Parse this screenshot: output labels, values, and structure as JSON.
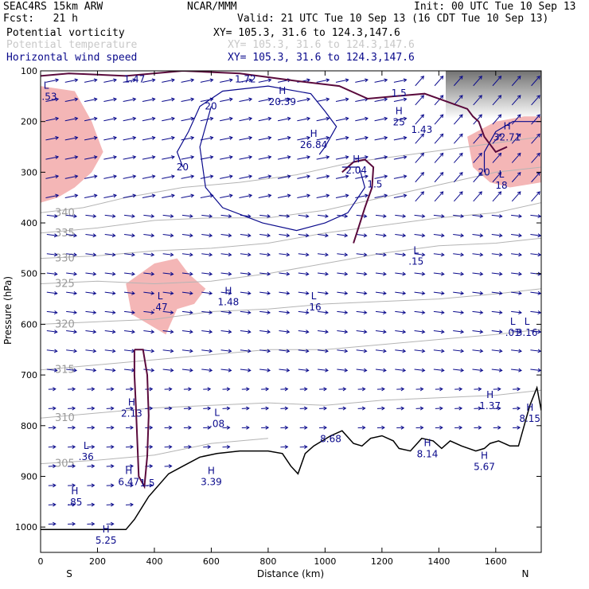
{
  "header": {
    "model": "SEAC4RS 15km ARW",
    "org": "NCAR/MMM",
    "init": "Init: 00 UTC Tue 10 Sep 13",
    "fcst": "Fcst:   21 h",
    "valid": "Valid: 21 UTC Tue 10 Sep 13 (16 CDT Tue 10 Sep 13)",
    "fields": [
      {
        "name": "Potential vorticity",
        "xy": "XY= 105.3, 31.6 to 124.3,147.6",
        "color": "#000000"
      },
      {
        "name": "Potential temperature",
        "xy": "XY= 105.3, 31.6 to 124.3,147.6",
        "color": "#c8c8c8"
      },
      {
        "name": "Horizontal wind speed",
        "xy": "XY= 105.3, 31.6 to 124.3,147.6",
        "color": "#0a0a8c"
      }
    ]
  },
  "colors": {
    "pv_shade": "#f4b6b6",
    "pv_contour": "#5a0a3c",
    "theta": "#b4b4b4",
    "wind": "#0a0a8c",
    "terrain": "#000000"
  },
  "chart_data": {
    "type": "contour cross-section",
    "xlabel": "Distance (km)",
    "ylabel": "Pressure (hPa)",
    "xlim": [
      0,
      1760
    ],
    "ylim": [
      1050,
      100
    ],
    "x_ticks": [
      0,
      200,
      400,
      600,
      800,
      1000,
      1200,
      1400,
      1600
    ],
    "y_ticks": [
      100,
      200,
      300,
      400,
      500,
      600,
      700,
      800,
      900,
      1000
    ],
    "x_end_labels": {
      "left": "S",
      "right": "N"
    },
    "terrain": [
      [
        0,
        1005
      ],
      [
        300,
        1005
      ],
      [
        330,
        985
      ],
      [
        380,
        940
      ],
      [
        450,
        895
      ],
      [
        500,
        880
      ],
      [
        560,
        862
      ],
      [
        620,
        855
      ],
      [
        700,
        850
      ],
      [
        800,
        850
      ],
      [
        850,
        855
      ],
      [
        880,
        880
      ],
      [
        905,
        895
      ],
      [
        930,
        855
      ],
      [
        960,
        840
      ],
      [
        990,
        830
      ],
      [
        1020,
        820
      ],
      [
        1060,
        810
      ],
      [
        1100,
        835
      ],
      [
        1130,
        840
      ],
      [
        1160,
        825
      ],
      [
        1200,
        820
      ],
      [
        1240,
        830
      ],
      [
        1260,
        845
      ],
      [
        1300,
        850
      ],
      [
        1340,
        825
      ],
      [
        1380,
        830
      ],
      [
        1410,
        845
      ],
      [
        1440,
        830
      ],
      [
        1480,
        840
      ],
      [
        1530,
        850
      ],
      [
        1560,
        845
      ],
      [
        1580,
        835
      ],
      [
        1610,
        830
      ],
      [
        1650,
        840
      ],
      [
        1680,
        840
      ],
      [
        1720,
        760
      ],
      [
        1745,
        725
      ],
      [
        1760,
        770
      ]
    ],
    "theta_contours": [
      {
        "label": "340",
        "points": [
          [
            0,
            380
          ],
          [
            150,
            370
          ],
          [
            300,
            350
          ],
          [
            500,
            330
          ],
          [
            700,
            320
          ],
          [
            900,
            305
          ],
          [
            1100,
            280
          ],
          [
            1300,
            265
          ],
          [
            1500,
            250
          ],
          [
            1760,
            230
          ]
        ]
      },
      {
        "label": "335",
        "points": [
          [
            0,
            420
          ],
          [
            200,
            410
          ],
          [
            400,
            395
          ],
          [
            600,
            390
          ],
          [
            800,
            390
          ],
          [
            1000,
            375
          ],
          [
            1200,
            350
          ],
          [
            1400,
            325
          ],
          [
            1600,
            300
          ],
          [
            1760,
            290
          ]
        ]
      },
      {
        "label": "330",
        "points": [
          [
            0,
            470
          ],
          [
            200,
            465
          ],
          [
            400,
            455
          ],
          [
            600,
            450
          ],
          [
            800,
            440
          ],
          [
            1000,
            420
          ],
          [
            1200,
            405
          ],
          [
            1400,
            390
          ],
          [
            1600,
            380
          ],
          [
            1760,
            360
          ]
        ]
      },
      {
        "label": "325",
        "points": [
          [
            0,
            520
          ],
          [
            200,
            515
          ],
          [
            400,
            520
          ],
          [
            600,
            515
          ],
          [
            800,
            500
          ],
          [
            1000,
            480
          ],
          [
            1200,
            460
          ],
          [
            1400,
            445
          ],
          [
            1600,
            440
          ],
          [
            1760,
            430
          ]
        ]
      },
      {
        "label": "320",
        "points": [
          [
            0,
            600
          ],
          [
            200,
            595
          ],
          [
            400,
            590
          ],
          [
            600,
            575
          ],
          [
            800,
            570
          ],
          [
            1000,
            560
          ],
          [
            1200,
            555
          ],
          [
            1400,
            550
          ],
          [
            1600,
            540
          ],
          [
            1760,
            530
          ]
        ]
      },
      {
        "label": "315",
        "points": [
          [
            0,
            690
          ],
          [
            200,
            680
          ],
          [
            400,
            670
          ],
          [
            600,
            660
          ],
          [
            800,
            650
          ],
          [
            1000,
            650
          ],
          [
            1200,
            640
          ],
          [
            1400,
            630
          ],
          [
            1600,
            620
          ],
          [
            1760,
            610
          ]
        ]
      },
      {
        "label": "310",
        "points": [
          [
            0,
            785
          ],
          [
            200,
            775
          ],
          [
            400,
            765
          ],
          [
            600,
            760
          ],
          [
            800,
            755
          ],
          [
            1000,
            760
          ],
          [
            1200,
            750
          ],
          [
            1400,
            745
          ],
          [
            1600,
            740
          ],
          [
            1760,
            730
          ]
        ]
      },
      {
        "label": "305",
        "points": [
          [
            0,
            875
          ],
          [
            200,
            868
          ],
          [
            400,
            858
          ],
          [
            600,
            835
          ],
          [
            800,
            825
          ]
        ]
      }
    ],
    "pv_contours": [
      {
        "label": "1.5",
        "points": [
          [
            330,
            650
          ],
          [
            360,
            650
          ],
          [
            375,
            700
          ],
          [
            380,
            780
          ],
          [
            375,
            860
          ],
          [
            365,
            920
          ],
          [
            345,
            900
          ],
          [
            340,
            830
          ],
          [
            335,
            760
          ],
          [
            330,
            700
          ],
          [
            330,
            650
          ]
        ]
      },
      {
        "label": "1.5",
        "points": [
          [
            1060,
            300
          ],
          [
            1100,
            280
          ],
          [
            1140,
            275
          ],
          [
            1170,
            290
          ],
          [
            1165,
            330
          ],
          [
            1140,
            370
          ],
          [
            1120,
            405
          ],
          [
            1100,
            440
          ]
        ]
      },
      {
        "label": "1.5",
        "points": [
          [
            0,
            110
          ],
          [
            100,
            105
          ],
          [
            300,
            110
          ],
          [
            500,
            100
          ],
          [
            700,
            105
          ],
          [
            900,
            120
          ],
          [
            1050,
            130
          ],
          [
            1150,
            155
          ],
          [
            1250,
            150
          ],
          [
            1350,
            145
          ],
          [
            1450,
            165
          ],
          [
            1500,
            175
          ],
          [
            1520,
            190
          ],
          [
            1540,
            200
          ],
          [
            1560,
            230
          ],
          [
            1600,
            260
          ],
          [
            1640,
            250
          ]
        ]
      }
    ],
    "wind_contours": [
      {
        "label": "20",
        "points": [
          [
            500,
            290
          ],
          [
            480,
            260
          ],
          [
            520,
            220
          ],
          [
            560,
            170
          ],
          [
            640,
            140
          ],
          [
            800,
            130
          ],
          [
            950,
            145
          ],
          [
            1000,
            180
          ],
          [
            1040,
            210
          ],
          [
            1000,
            250
          ],
          [
            980,
            265
          ]
        ]
      },
      {
        "label": "20",
        "points": [
          [
            600,
            170
          ],
          [
            560,
            250
          ],
          [
            580,
            330
          ],
          [
            640,
            370
          ],
          [
            780,
            400
          ],
          [
            900,
            415
          ],
          [
            1000,
            400
          ],
          [
            1080,
            380
          ],
          [
            1140,
            330
          ],
          [
            1120,
            290
          ],
          [
            1060,
            290
          ]
        ]
      },
      {
        "label": "20",
        "points": [
          [
            1560,
            300
          ],
          [
            1560,
            260
          ],
          [
            1600,
            220
          ],
          [
            1660,
            200
          ],
          [
            1720,
            200
          ],
          [
            1760,
            200
          ]
        ]
      }
    ],
    "pv_shaded_regions": [
      {
        "points": [
          [
            0,
            130
          ],
          [
            120,
            140
          ],
          [
            180,
            200
          ],
          [
            220,
            260
          ],
          [
            180,
            300
          ],
          [
            120,
            330
          ],
          [
            60,
            350
          ],
          [
            0,
            360
          ]
        ]
      },
      {
        "points": [
          [
            1500,
            230
          ],
          [
            1600,
            200
          ],
          [
            1700,
            190
          ],
          [
            1760,
            190
          ],
          [
            1760,
            320
          ],
          [
            1650,
            330
          ],
          [
            1580,
            320
          ],
          [
            1520,
            290
          ]
        ]
      },
      {
        "points": [
          [
            300,
            520
          ],
          [
            400,
            480
          ],
          [
            480,
            470
          ],
          [
            520,
            500
          ],
          [
            580,
            530
          ],
          [
            540,
            560
          ],
          [
            480,
            570
          ],
          [
            440,
            620
          ],
          [
            380,
            600
          ],
          [
            320,
            580
          ]
        ]
      }
    ],
    "extrema": [
      {
        "kind": "L",
        "value": "1.53",
        "x": 20,
        "p": 145
      },
      {
        "kind": "",
        "value": "1.47",
        "x": 330,
        "p": 110
      },
      {
        "kind": "",
        "value": "1.72",
        "x": 720,
        "p": 110
      },
      {
        "kind": "H",
        "value": "20.39",
        "x": 850,
        "p": 155
      },
      {
        "kind": "H",
        "value": "26.84",
        "x": 960,
        "p": 240
      },
      {
        "kind": "H",
        "value": "2.04",
        "x": 1110,
        "p": 290
      },
      {
        "kind": "H",
        "value": "25",
        "x": 1260,
        "p": 195
      },
      {
        "kind": "",
        "value": "1.43",
        "x": 1340,
        "p": 210
      },
      {
        "kind": "H",
        "value": "32.71",
        "x": 1640,
        "p": 225
      },
      {
        "kind": "L",
        "value": "18",
        "x": 1620,
        "p": 320
      },
      {
        "kind": "L",
        "value": ".15",
        "x": 1320,
        "p": 470
      },
      {
        "kind": "L",
        "value": ".47",
        "x": 420,
        "p": 560
      },
      {
        "kind": "H",
        "value": "1.48",
        "x": 660,
        "p": 550
      },
      {
        "kind": "L",
        "value": ".16",
        "x": 960,
        "p": 560
      },
      {
        "kind": "L",
        "value": ".01",
        "x": 1660,
        "p": 610
      },
      {
        "kind": "L",
        "value": "3.16",
        "x": 1710,
        "p": 610
      },
      {
        "kind": "H",
        "value": "2.13",
        "x": 320,
        "p": 770
      },
      {
        "kind": "L",
        "value": ".08",
        "x": 620,
        "p": 790
      },
      {
        "kind": "L",
        "value": ".36",
        "x": 160,
        "p": 855
      },
      {
        "kind": "H",
        "value": "6.47",
        "x": 310,
        "p": 905
      },
      {
        "kind": "H",
        "value": "3.39",
        "x": 600,
        "p": 905
      },
      {
        "kind": "",
        "value": "8.68",
        "x": 1020,
        "p": 820
      },
      {
        "kind": "H",
        "value": "8.14",
        "x": 1360,
        "p": 850
      },
      {
        "kind": "H",
        "value": "1.37",
        "x": 1580,
        "p": 755
      },
      {
        "kind": "H",
        "value": "8.15",
        "x": 1720,
        "p": 780
      },
      {
        "kind": "H",
        "value": "5.67",
        "x": 1560,
        "p": 875
      },
      {
        "kind": "H",
        "value": ".85",
        "x": 120,
        "p": 945
      },
      {
        "kind": "H",
        "value": "5.25",
        "x": 230,
        "p": 1020
      }
    ]
  }
}
